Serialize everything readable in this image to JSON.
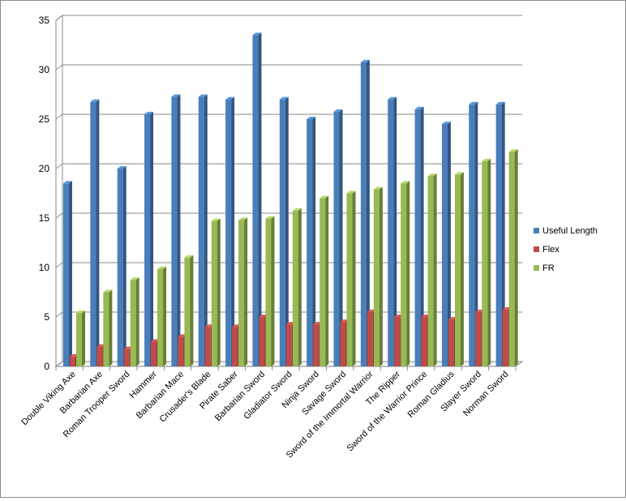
{
  "chart_data": {
    "type": "bar",
    "title": "",
    "xlabel": "",
    "ylabel": "",
    "ylim": [
      0,
      35
    ],
    "yticks": [
      0,
      5,
      10,
      15,
      20,
      25,
      30,
      35
    ],
    "grid": true,
    "legend_position": "right",
    "categories": [
      "Double Viking Axe",
      "Barbarian Axe",
      "Roman Trooper Sword",
      "Hammer",
      "Barbarian Mace",
      "Crusader's Blade",
      "Pirate Saber",
      "Barbarian Sword",
      "Gladiator Sword",
      "Ninja Sword",
      "Savage Sword",
      "Sword of the Immortal Warrior",
      "The Ripper",
      "Sword of the Warrior Prince",
      "Roman Gladius",
      "Slayer Sword",
      "Norman Sword"
    ],
    "series": [
      {
        "name": "Useful Length",
        "color": "#4a7ebb",
        "values": [
          18.5,
          26.75,
          20,
          25.5,
          27.25,
          27.25,
          27,
          33.5,
          27,
          25,
          25.75,
          30.75,
          27,
          26,
          24.5,
          26.5,
          26.5
        ]
      },
      {
        "name": "Flex",
        "color": "#be4b48",
        "values": [
          1,
          2,
          1.75,
          2.5,
          3,
          4,
          4,
          5,
          4.25,
          4.25,
          4.5,
          5.5,
          5,
          5,
          4.75,
          5.5,
          5.75
        ]
      },
      {
        "name": "FR",
        "color": "#98b954",
        "values": [
          5.4,
          7.5,
          8.75,
          9.85,
          11,
          14.7,
          14.8,
          14.95,
          15.75,
          17,
          17.5,
          17.9,
          18.5,
          19.25,
          19.4,
          20.75,
          21.7
        ]
      }
    ]
  }
}
